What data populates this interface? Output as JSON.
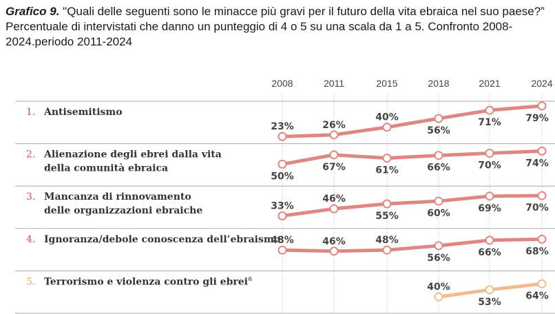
{
  "chart_data": {
    "type": "line",
    "title_prefix": "Grafico 9.",
    "title": "\"Quali delle seguenti sono le minacce più gravi per il futuro della vita ebraica nel suo paese?” Percentuale di intervistati che danno un punteggio di 4 o 5 su una scala da 1 a 5. Confronto 2008-2024.periodo 2011-2024",
    "categories": [
      "2008",
      "2011",
      "2015",
      "2018",
      "2021",
      "2024"
    ],
    "ylim": [
      20,
      80
    ],
    "series": [
      {
        "number": "1.",
        "name": [
          "Antisemitismo"
        ],
        "color": "#e08784",
        "number_color": "#d0504c",
        "values": [
          23,
          26,
          40,
          56,
          71,
          79
        ],
        "value_labels": [
          "23%",
          "26%",
          "40%",
          "56%",
          "71%",
          "79%"
        ]
      },
      {
        "number": "2.",
        "name": [
          "Alienazione degli ebrei dalla vita",
          "della comunità ebraica"
        ],
        "color": "#e08784",
        "number_color": "#d0504c",
        "values": [
          50,
          67,
          61,
          66,
          70,
          74
        ],
        "value_labels": [
          "50%",
          "67%",
          "61%",
          "66%",
          "70%",
          "74%"
        ]
      },
      {
        "number": "3.",
        "name": [
          "Mancanza di rinnovamento",
          "delle organizzazioni ebraiche"
        ],
        "color": "#e08784",
        "number_color": "#d0504c",
        "values": [
          33,
          46,
          55,
          60,
          69,
          70
        ],
        "value_labels": [
          "33%",
          "46%",
          "55%",
          "60%",
          "69%",
          "70%"
        ]
      },
      {
        "number": "4.",
        "name": [
          "Ignoranza/debole conoscenza dell’ebraismo"
        ],
        "color": "#e08784",
        "number_color": "#d0504c",
        "values": [
          48,
          46,
          48,
          56,
          66,
          68
        ],
        "value_labels": [
          "48%",
          "46%",
          "48%",
          "56%",
          "66%",
          "68%"
        ]
      },
      {
        "number": "5.",
        "name": [
          "Terrorismo e violenza contro gli ebrei"
        ],
        "superscript": "a",
        "color": "#f2bd8e",
        "number_color": "#eba25f",
        "values": [
          null,
          null,
          null,
          40,
          53,
          64
        ],
        "value_labels": [
          null,
          null,
          null,
          "40%",
          "53%",
          "64%"
        ]
      }
    ]
  }
}
